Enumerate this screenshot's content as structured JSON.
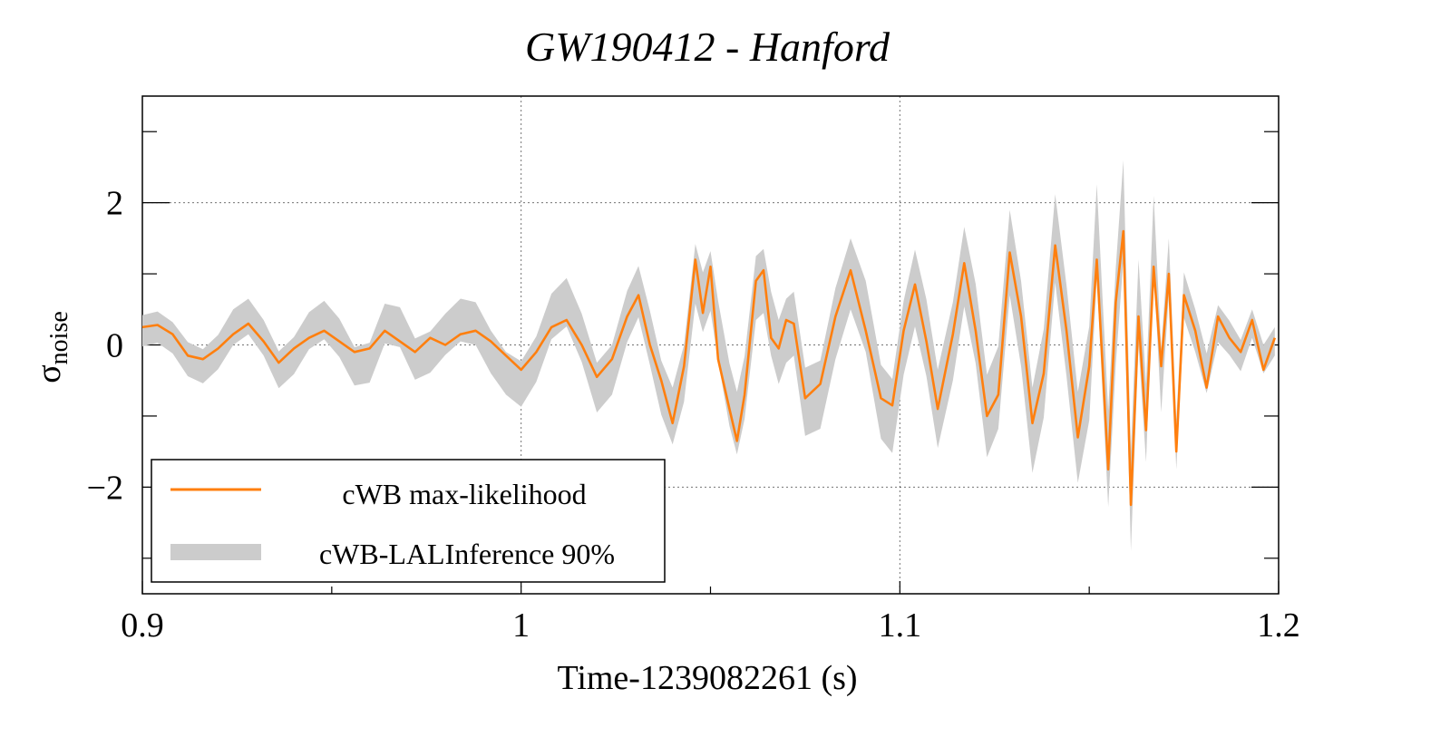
{
  "chart_data": {
    "type": "line",
    "title": "GW190412 - Hanford",
    "xlabel": "Time-1239082261 (s)",
    "ylabel": "σ",
    "ylabel_subscript": "noise",
    "xlim": [
      0.9,
      1.2
    ],
    "ylim": [
      -3.5,
      3.5
    ],
    "x_ticks": [
      0.9,
      1.0,
      1.1,
      1.2
    ],
    "x_tick_labels": [
      "0.9",
      "1",
      "1.1",
      "1.2"
    ],
    "y_ticks": [
      -2,
      0,
      2
    ],
    "y_tick_labels": [
      "−2",
      "0",
      "2"
    ],
    "grid": true,
    "legend_position": "bottom-left",
    "colors": {
      "line": "#ff7f0e",
      "band": "#cccccc"
    },
    "series": [
      {
        "name": "cWB max-likelihood",
        "kind": "line",
        "x": [
          0.9,
          0.904,
          0.908,
          0.912,
          0.916,
          0.92,
          0.924,
          0.928,
          0.932,
          0.936,
          0.94,
          0.944,
          0.948,
          0.952,
          0.956,
          0.96,
          0.964,
          0.968,
          0.972,
          0.976,
          0.98,
          0.984,
          0.988,
          0.992,
          0.996,
          1.0,
          1.004,
          1.008,
          1.012,
          1.016,
          1.02,
          1.024,
          1.028,
          1.031,
          1.034,
          1.037,
          1.04,
          1.043,
          1.046,
          1.048,
          1.05,
          1.052,
          1.055,
          1.057,
          1.059,
          1.062,
          1.064,
          1.066,
          1.068,
          1.07,
          1.072,
          1.075,
          1.079,
          1.083,
          1.087,
          1.091,
          1.095,
          1.098,
          1.101,
          1.104,
          1.107,
          1.11,
          1.114,
          1.117,
          1.12,
          1.123,
          1.126,
          1.129,
          1.132,
          1.135,
          1.138,
          1.141,
          1.144,
          1.147,
          1.15,
          1.152,
          1.155,
          1.157,
          1.159,
          1.161,
          1.163,
          1.165,
          1.167,
          1.169,
          1.171,
          1.173,
          1.175,
          1.178,
          1.181,
          1.184,
          1.187,
          1.19,
          1.193,
          1.196,
          1.199
        ],
        "y": [
          0.25,
          0.28,
          0.15,
          -0.15,
          -0.2,
          -0.05,
          0.15,
          0.3,
          0.05,
          -0.25,
          -0.05,
          0.1,
          0.2,
          0.05,
          -0.1,
          -0.05,
          0.2,
          0.05,
          -0.1,
          0.1,
          0.0,
          0.15,
          0.2,
          0.05,
          -0.15,
          -0.35,
          -0.1,
          0.25,
          0.35,
          0.0,
          -0.45,
          -0.2,
          0.4,
          0.7,
          0.0,
          -0.5,
          -1.1,
          -0.3,
          1.2,
          0.45,
          1.1,
          -0.2,
          -0.9,
          -1.35,
          -0.7,
          0.9,
          1.05,
          0.1,
          -0.05,
          0.35,
          0.3,
          -0.75,
          -0.55,
          0.4,
          1.05,
          0.2,
          -0.75,
          -0.85,
          0.2,
          0.85,
          0.05,
          -0.9,
          0.15,
          1.15,
          0.2,
          -1.0,
          -0.7,
          1.3,
          0.4,
          -1.1,
          -0.4,
          1.4,
          0.2,
          -1.3,
          -0.3,
          1.2,
          -1.75,
          0.6,
          1.6,
          -2.25,
          0.4,
          -1.2,
          1.1,
          -0.3,
          1.0,
          -1.5,
          0.7,
          0.2,
          -0.6,
          0.4,
          0.1,
          -0.1,
          0.35,
          -0.35,
          0.1
        ]
      },
      {
        "name": "cWB-LALInference 90%",
        "kind": "band",
        "x": [
          0.9,
          0.904,
          0.908,
          0.912,
          0.916,
          0.92,
          0.924,
          0.928,
          0.932,
          0.936,
          0.94,
          0.944,
          0.948,
          0.952,
          0.956,
          0.96,
          0.964,
          0.968,
          0.972,
          0.976,
          0.98,
          0.984,
          0.988,
          0.992,
          0.996,
          1.0,
          1.004,
          1.008,
          1.012,
          1.016,
          1.02,
          1.024,
          1.028,
          1.031,
          1.034,
          1.037,
          1.04,
          1.043,
          1.046,
          1.048,
          1.05,
          1.052,
          1.055,
          1.057,
          1.059,
          1.062,
          1.064,
          1.066,
          1.068,
          1.07,
          1.072,
          1.075,
          1.079,
          1.083,
          1.087,
          1.091,
          1.095,
          1.098,
          1.101,
          1.104,
          1.107,
          1.11,
          1.114,
          1.117,
          1.12,
          1.123,
          1.126,
          1.129,
          1.132,
          1.135,
          1.138,
          1.141,
          1.144,
          1.147,
          1.15,
          1.152,
          1.155,
          1.157,
          1.159,
          1.161,
          1.163,
          1.165,
          1.167,
          1.169,
          1.171,
          1.173,
          1.175,
          1.178,
          1.181,
          1.184,
          1.187,
          1.19,
          1.193,
          1.196,
          1.199
        ],
        "center": [
          0.2,
          0.25,
          0.1,
          -0.2,
          -0.3,
          -0.1,
          0.25,
          0.4,
          0.1,
          -0.35,
          -0.15,
          0.2,
          0.35,
          0.1,
          -0.3,
          -0.25,
          0.3,
          0.25,
          -0.2,
          -0.1,
          0.15,
          0.35,
          0.3,
          -0.1,
          -0.4,
          -0.55,
          -0.2,
          0.4,
          0.6,
          0.1,
          -0.6,
          -0.35,
          0.4,
          0.75,
          0.1,
          -0.6,
          -1.0,
          -0.4,
          1.0,
          0.6,
          0.9,
          0.2,
          -0.7,
          -1.1,
          -0.6,
          0.8,
          0.9,
          0.3,
          -0.1,
          0.2,
          0.3,
          -0.8,
          -0.7,
          0.3,
          1.0,
          0.4,
          -0.8,
          -1.0,
          0.1,
          0.8,
          0.1,
          -0.9,
          0.05,
          1.1,
          0.3,
          -1.0,
          -0.6,
          1.3,
          0.3,
          -1.2,
          -0.4,
          1.5,
          0.2,
          -1.3,
          -0.4,
          1.6,
          -1.6,
          0.4,
          1.9,
          -2.2,
          0.6,
          -1.1,
          1.6,
          -0.5,
          1.1,
          -1.4,
          0.7,
          0.2,
          -0.4,
          0.3,
          0.1,
          -0.15,
          0.3,
          -0.2,
          0.05
        ],
        "halfwidth": [
          0.22,
          0.22,
          0.22,
          0.24,
          0.24,
          0.24,
          0.25,
          0.25,
          0.25,
          0.26,
          0.26,
          0.26,
          0.27,
          0.27,
          0.27,
          0.28,
          0.28,
          0.28,
          0.29,
          0.29,
          0.29,
          0.3,
          0.3,
          0.3,
          0.3,
          0.32,
          0.32,
          0.32,
          0.34,
          0.34,
          0.35,
          0.35,
          0.36,
          0.36,
          0.38,
          0.38,
          0.4,
          0.4,
          0.42,
          0.42,
          0.42,
          0.42,
          0.44,
          0.44,
          0.44,
          0.45,
          0.45,
          0.45,
          0.45,
          0.45,
          0.45,
          0.48,
          0.48,
          0.5,
          0.5,
          0.5,
          0.52,
          0.52,
          0.52,
          0.54,
          0.54,
          0.55,
          0.55,
          0.56,
          0.56,
          0.58,
          0.58,
          0.6,
          0.6,
          0.6,
          0.62,
          0.62,
          0.64,
          0.64,
          0.66,
          0.66,
          0.68,
          0.68,
          0.7,
          0.7,
          0.6,
          0.55,
          0.5,
          0.45,
          0.4,
          0.35,
          0.32,
          0.3,
          0.28,
          0.26,
          0.24,
          0.22,
          0.2,
          0.2,
          0.2
        ]
      }
    ]
  }
}
